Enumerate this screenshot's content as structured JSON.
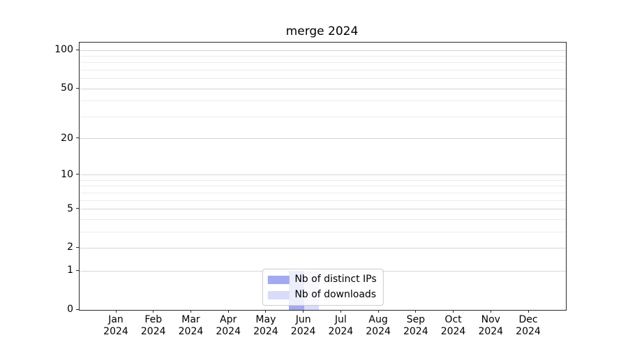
{
  "chart_data": {
    "type": "bar",
    "title": "merge 2024",
    "categories": [
      "Jan",
      "Feb",
      "Mar",
      "Apr",
      "May",
      "Jun",
      "Jul",
      "Aug",
      "Sep",
      "Oct",
      "Nov",
      "Dec"
    ],
    "x_tick_year": "2024",
    "series": [
      {
        "name": "Nb of distinct IPs",
        "color": "#a2a9ee",
        "values": [
          0,
          0,
          0,
          0,
          0,
          1,
          0,
          0,
          0,
          0,
          0,
          0
        ]
      },
      {
        "name": "Nb of downloads",
        "color": "#d9dcf8",
        "values": [
          0,
          0,
          0,
          0,
          0,
          1,
          0,
          0,
          0,
          0,
          0,
          0
        ]
      }
    ],
    "yscale": "log1p",
    "ylim": [
      0,
      115
    ],
    "yticks": [
      0,
      1,
      2,
      5,
      10,
      20,
      50,
      100
    ],
    "yticks_minor": [
      3,
      4,
      6,
      7,
      8,
      9,
      30,
      40,
      60,
      70,
      80,
      90
    ],
    "grid": true,
    "legend_position": "lower center"
  }
}
